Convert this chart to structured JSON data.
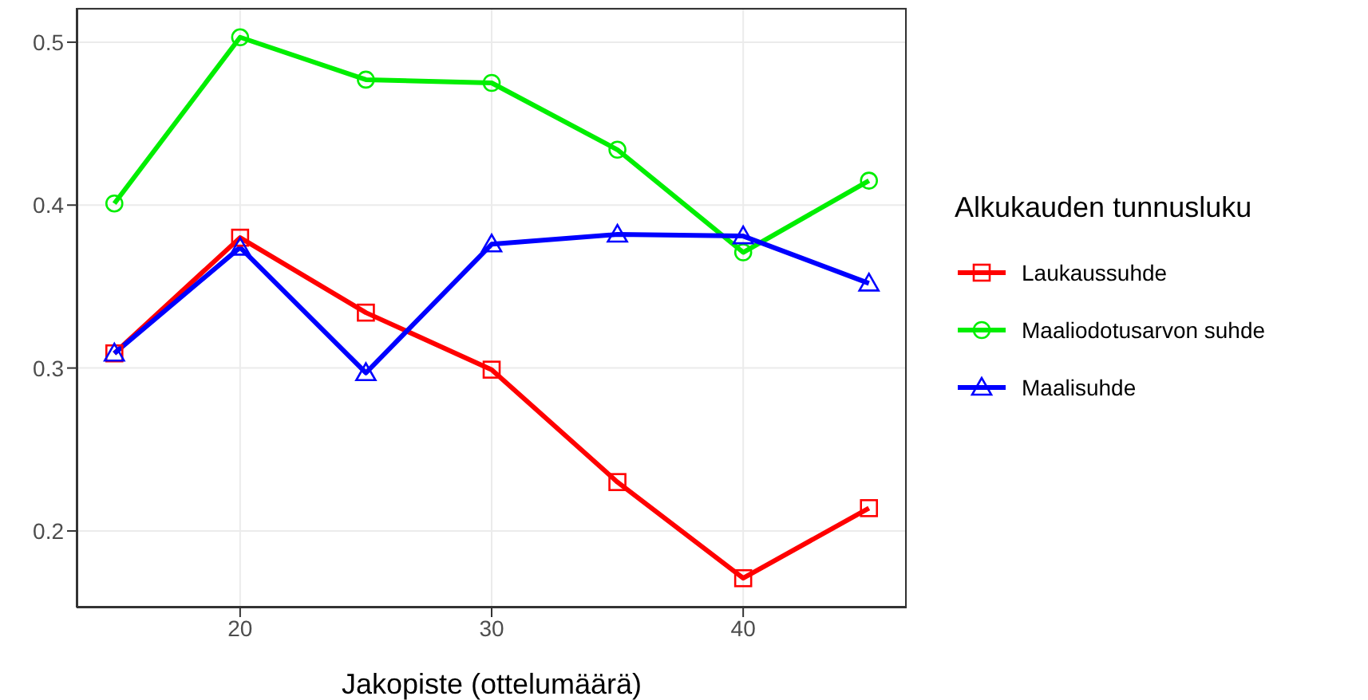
{
  "chart_data": {
    "type": "line",
    "xlabel": "Jakopiste (ottelumäärä)",
    "legend_title": "Alkukauden tunnusluku",
    "x": [
      15,
      20,
      25,
      30,
      35,
      40,
      45
    ],
    "series": [
      {
        "name": "Laukaussuhde",
        "color": "#ff0000",
        "marker": "square",
        "values": [
          0.309,
          0.38,
          0.334,
          0.299,
          0.23,
          0.171,
          0.214
        ]
      },
      {
        "name": "Maaliodotusarvon suhde",
        "color": "#00ee00",
        "marker": "circle",
        "values": [
          0.401,
          0.503,
          0.477,
          0.475,
          0.434,
          0.371,
          0.415
        ]
      },
      {
        "name": "Maalisuhde",
        "color": "#0000ff",
        "marker": "triangle",
        "values": [
          0.309,
          0.374,
          0.297,
          0.376,
          0.382,
          0.381,
          0.352
        ]
      }
    ],
    "xlim": [
      13.5,
      46.5
    ],
    "xticks": [
      20,
      30,
      40
    ],
    "ylim": [
      0.153,
      0.521
    ],
    "yticks": [
      0.2,
      0.3,
      0.4,
      0.5
    ],
    "grid": true,
    "legend": "right",
    "line_style": "solid"
  }
}
